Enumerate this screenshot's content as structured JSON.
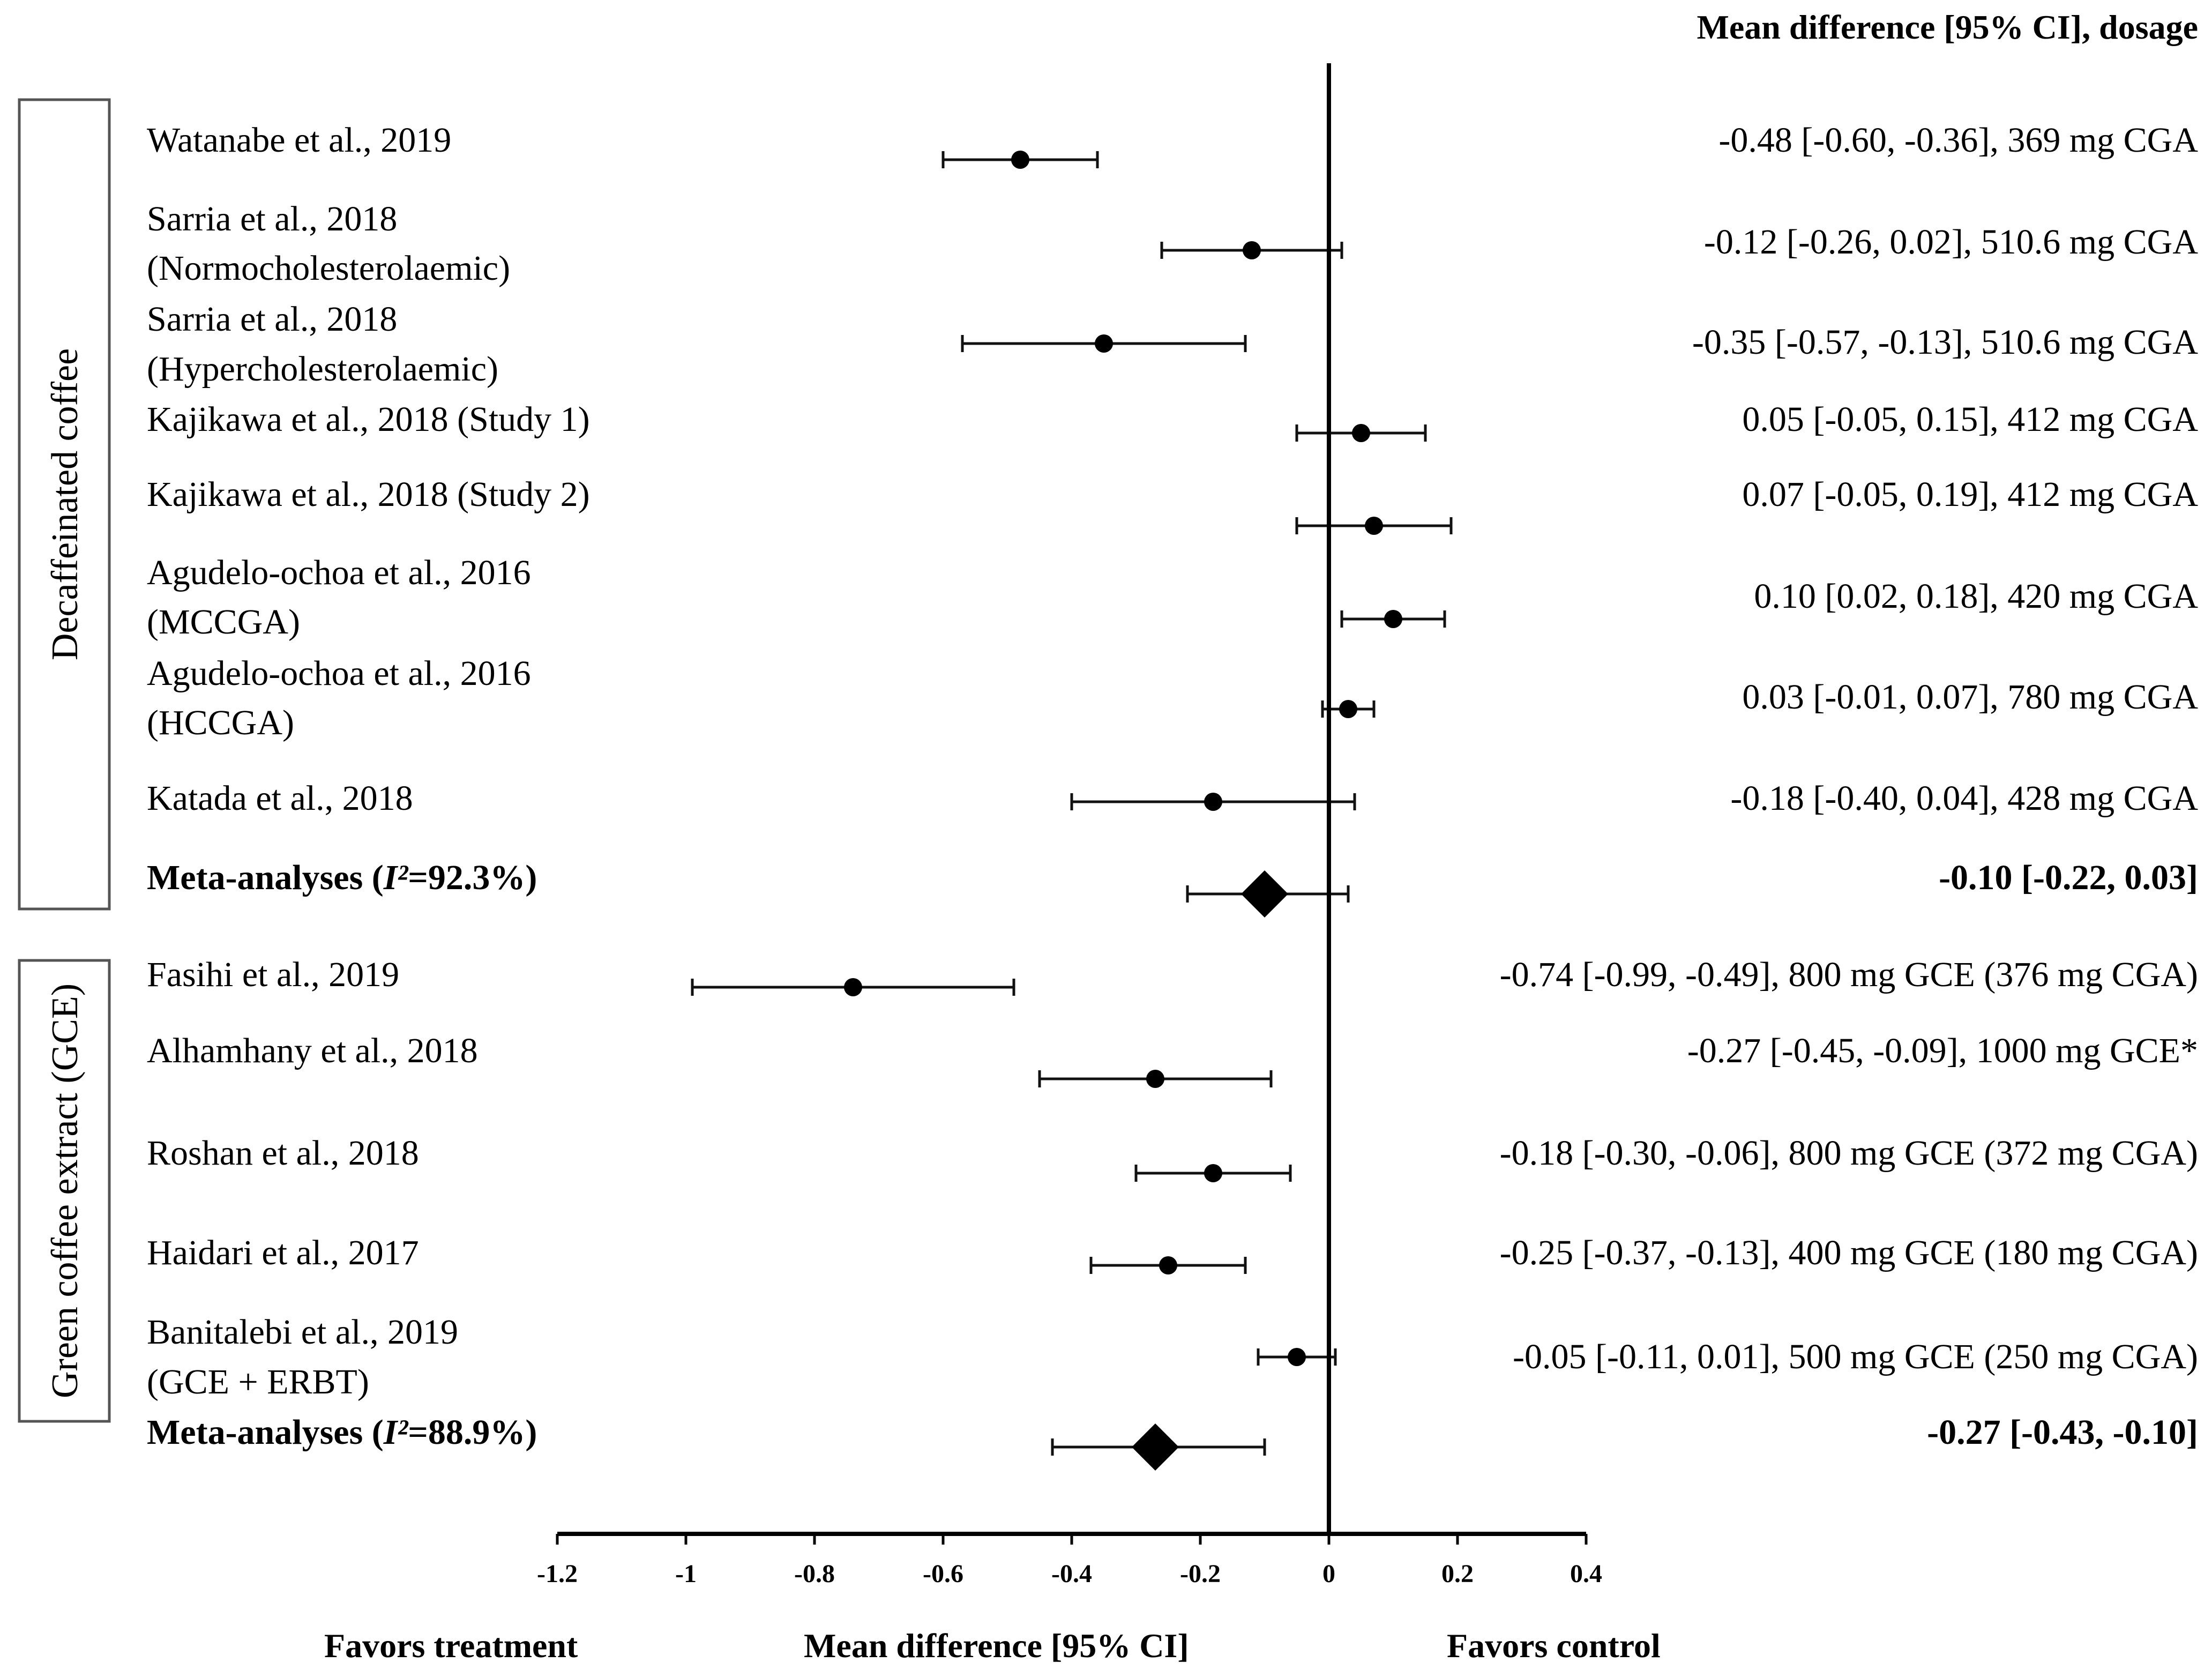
{
  "chart_data": {
    "type": "forest",
    "header": "Mean difference [95% CI], dosage",
    "xlim": [
      -1.2,
      0.4
    ],
    "x_ticks": [
      "-1.2",
      "-1",
      "-0.8",
      "-0.6",
      "-0.4",
      "-0.2",
      "0",
      "0.2",
      "0.4"
    ],
    "x_tick_values": [
      -1.2,
      -1.0,
      -0.8,
      -0.6,
      -0.4,
      -0.2,
      0,
      0.2,
      0.4
    ],
    "xlabel": "Mean difference [95% CI]",
    "favors_left": "Favors treatment",
    "favors_right": "Favors control",
    "groups": [
      {
        "name": "Decaffeinated coffee",
        "studies": [
          {
            "label": [
              "Watanabe et al., 2019"
            ],
            "mean": -0.48,
            "lower": -0.6,
            "upper": -0.36,
            "text": "-0.48 [-0.60, -0.36], 369 mg CGA"
          },
          {
            "label": [
              "Sarria et al., 2018",
              "(Normocholesterolaemic)"
            ],
            "mean": -0.12,
            "lower": -0.26,
            "upper": 0.02,
            "text": "-0.12 [-0.26, 0.02], 510.6 mg CGA"
          },
          {
            "label": [
              "Sarria et al., 2018",
              "(Hypercholesterolaemic)"
            ],
            "mean": -0.35,
            "lower": -0.57,
            "upper": -0.13,
            "text": "-0.35 [-0.57, -0.13], 510.6 mg CGA"
          },
          {
            "label": [
              "Kajikawa et al., 2018 (Study 1)"
            ],
            "mean": 0.05,
            "lower": -0.05,
            "upper": 0.15,
            "text": "0.05 [-0.05, 0.15], 412 mg CGA"
          },
          {
            "label": [
              "Kajikawa et al., 2018 (Study 2)"
            ],
            "mean": 0.07,
            "lower": -0.05,
            "upper": 0.19,
            "text": "0.07 [-0.05, 0.19], 412 mg CGA"
          },
          {
            "label": [
              "Agudelo-ochoa et al., 2016",
              "(MCCGA)"
            ],
            "mean": 0.1,
            "lower": 0.02,
            "upper": 0.18,
            "text": "0.10 [0.02, 0.18], 420 mg CGA"
          },
          {
            "label": [
              "Agudelo-ochoa et al., 2016",
              "(HCCGA)"
            ],
            "mean": 0.03,
            "lower": -0.01,
            "upper": 0.07,
            "text": "0.03 [-0.01, 0.07], 780 mg CGA"
          },
          {
            "label": [
              "Katada et al., 2018"
            ],
            "mean": -0.18,
            "lower": -0.4,
            "upper": 0.04,
            "text": "-0.18 [-0.40, 0.04], 428 mg CGA"
          }
        ],
        "meta": {
          "label_prefix": "Meta-analyses (",
          "label_i2": "I²",
          "label_suffix": "=92.3%)",
          "mean": -0.1,
          "lower": -0.22,
          "upper": 0.03,
          "text": "-0.10 [-0.22, 0.03]"
        }
      },
      {
        "name": "Green coffee extract (GCE)",
        "studies": [
          {
            "label": [
              "Fasihi et al., 2019"
            ],
            "mean": -0.74,
            "lower": -0.99,
            "upper": -0.49,
            "text": "-0.74 [-0.99, -0.49], 800 mg GCE (376 mg CGA)"
          },
          {
            "label": [
              "Alhamhany et al., 2018"
            ],
            "mean": -0.27,
            "lower": -0.45,
            "upper": -0.09,
            "text": "-0.27 [-0.45, -0.09], 1000 mg GCE*"
          },
          {
            "label": [
              "Roshan et al., 2018"
            ],
            "mean": -0.18,
            "lower": -0.3,
            "upper": -0.06,
            "text": "-0.18 [-0.30, -0.06], 800 mg GCE (372 mg CGA)"
          },
          {
            "label": [
              "Haidari et al., 2017"
            ],
            "mean": -0.25,
            "lower": -0.37,
            "upper": -0.13,
            "text": "-0.25 [-0.37, -0.13], 400 mg GCE (180 mg CGA)"
          },
          {
            "label": [
              "Banitalebi et al., 2019",
              "(GCE + ERBT)"
            ],
            "mean": -0.05,
            "lower": -0.11,
            "upper": 0.01,
            "text": "-0.05 [-0.11, 0.01], 500 mg GCE (250 mg CGA)"
          }
        ],
        "meta": {
          "label_prefix": "Meta-analyses (",
          "label_i2": "I²",
          "label_suffix": "=88.9%)",
          "mean": -0.27,
          "lower": -0.43,
          "upper": -0.1,
          "text": "-0.27 [-0.43, -0.10]"
        }
      }
    ]
  }
}
